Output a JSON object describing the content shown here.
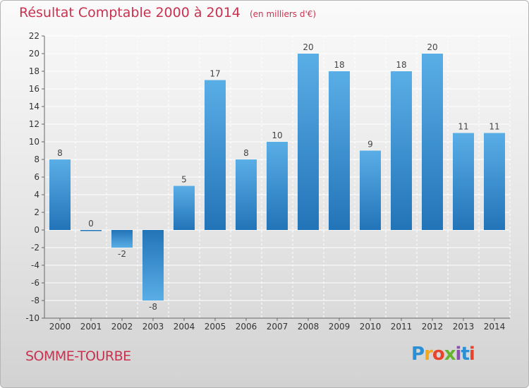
{
  "header": {
    "title": "Résultat Comptable 2000 à 2014",
    "subtitle": "(en milliers d'€)"
  },
  "footer": {
    "commune": "SOMME-TOURBE",
    "brand": "Proxiti",
    "brand_letters": [
      {
        "ch": "P",
        "color": "#2a8fd4"
      },
      {
        "ch": "r",
        "color": "#f2a81d"
      },
      {
        "ch": "o",
        "color": "#e8442d"
      },
      {
        "ch": "x",
        "color": "#66b32e"
      },
      {
        "ch": "i",
        "color": "#8a4fb0"
      },
      {
        "ch": "t",
        "color": "#2a8fd4"
      },
      {
        "ch": "i",
        "color": "#e8442d"
      }
    ]
  },
  "colors": {
    "title": "#c8324f",
    "bar_light": "#5aaee6",
    "bar_dark": "#2274b8",
    "grid": "#ffffff"
  },
  "chart_data": {
    "type": "bar",
    "title": "Résultat Comptable 2000 à 2014",
    "subtitle": "(en milliers d'€)",
    "categories": [
      "2000",
      "2001",
      "2002",
      "2003",
      "2004",
      "2005",
      "2006",
      "2007",
      "2008",
      "2009",
      "2010",
      "2011",
      "2012",
      "2013",
      "2014"
    ],
    "values": [
      8,
      0,
      -2,
      -8,
      5,
      17,
      8,
      10,
      20,
      18,
      9,
      18,
      20,
      11,
      11
    ],
    "ylim": [
      -10,
      22
    ],
    "yticks": [
      -10,
      -8,
      -6,
      -4,
      -2,
      0,
      2,
      4,
      6,
      8,
      10,
      12,
      14,
      16,
      18,
      20,
      22
    ],
    "grid": true,
    "legend": "none",
    "data_labels": true
  }
}
